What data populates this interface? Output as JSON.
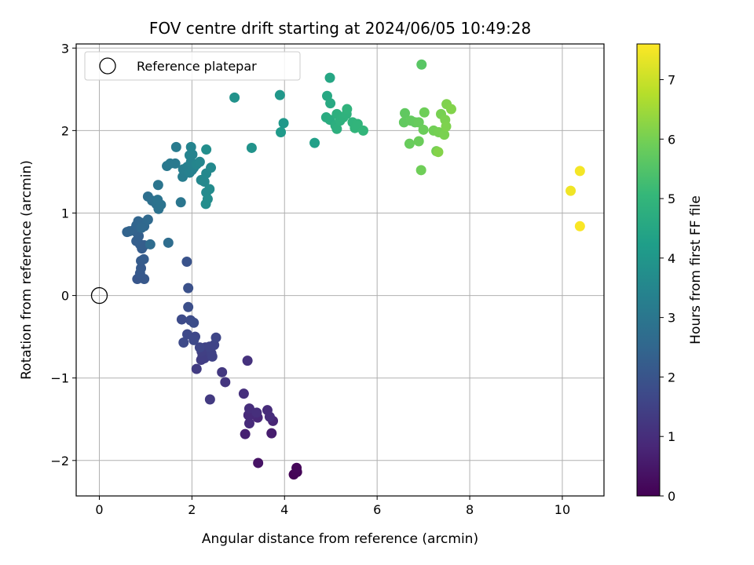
{
  "chart_data": {
    "type": "scatter",
    "title": "FOV centre drift starting at 2024/06/05 10:49:28",
    "xlabel": "Angular distance from reference (arcmin)",
    "ylabel": "Rotation from reference (arcmin)",
    "xlim": [
      -0.5,
      10.9
    ],
    "ylim": [
      -2.43,
      3.05
    ],
    "x_ticks": [
      0,
      2,
      4,
      6,
      8,
      10
    ],
    "x_tick_labels": [
      "0",
      "2",
      "4",
      "6",
      "8",
      "10"
    ],
    "y_ticks": [
      -2,
      -1,
      0,
      1,
      2,
      3
    ],
    "y_tick_labels": [
      "−2",
      "−1",
      "0",
      "1",
      "2",
      "3"
    ],
    "grid": true,
    "legend": {
      "placement": "upper-left",
      "entries": [
        {
          "label": "Reference platepar",
          "marker": "open-circle"
        }
      ]
    },
    "reference_point": {
      "x": 0,
      "y": 0
    },
    "colorbar": {
      "label": "Hours from first FF file",
      "range": [
        0,
        7.6
      ],
      "ticks": [
        0,
        1,
        2,
        3,
        4,
        5,
        6,
        7
      ],
      "tick_labels": [
        "0",
        "1",
        "2",
        "3",
        "4",
        "5",
        "6",
        "7"
      ],
      "colormap": "viridis",
      "colormap_stops": [
        "#440154",
        "#482878",
        "#3e4989",
        "#31688e",
        "#26828e",
        "#1f9e89",
        "#35b779",
        "#6ece58",
        "#b5de2b",
        "#fde725"
      ]
    },
    "series": [
      {
        "color_by": "hours",
        "points": [
          {
            "x": 4.2,
            "y": -2.17,
            "c": 0.05
          },
          {
            "x": 4.27,
            "y": -2.14,
            "c": 0.08
          },
          {
            "x": 4.26,
            "y": -2.09,
            "c": 0.12
          },
          {
            "x": 3.43,
            "y": -2.03,
            "c": 0.4
          },
          {
            "x": 3.72,
            "y": -1.67,
            "c": 0.6
          },
          {
            "x": 3.15,
            "y": -1.68,
            "c": 0.7
          },
          {
            "x": 3.75,
            "y": -1.52,
            "c": 0.8
          },
          {
            "x": 3.42,
            "y": -1.48,
            "c": 0.85
          },
          {
            "x": 3.3,
            "y": -1.44,
            "c": 0.88
          },
          {
            "x": 3.22,
            "y": -1.45,
            "c": 0.9
          },
          {
            "x": 3.24,
            "y": -1.55,
            "c": 0.92
          },
          {
            "x": 3.63,
            "y": -1.39,
            "c": 0.95
          },
          {
            "x": 3.68,
            "y": -1.47,
            "c": 0.97
          },
          {
            "x": 3.24,
            "y": -1.37,
            "c": 1.0
          },
          {
            "x": 3.4,
            "y": -1.42,
            "c": 1.02
          },
          {
            "x": 3.12,
            "y": -1.19,
            "c": 1.05
          },
          {
            "x": 3.2,
            "y": -0.79,
            "c": 1.1
          },
          {
            "x": 2.72,
            "y": -1.05,
            "c": 1.2
          },
          {
            "x": 2.65,
            "y": -0.93,
            "c": 1.25
          },
          {
            "x": 2.39,
            "y": -1.26,
            "c": 1.3
          },
          {
            "x": 2.1,
            "y": -0.89,
            "c": 1.35
          },
          {
            "x": 2.2,
            "y": -0.78,
            "c": 1.38
          },
          {
            "x": 2.23,
            "y": -0.73,
            "c": 1.4
          },
          {
            "x": 2.27,
            "y": -0.76,
            "c": 1.42
          },
          {
            "x": 2.21,
            "y": -0.68,
            "c": 1.45
          },
          {
            "x": 2.29,
            "y": -0.63,
            "c": 1.47
          },
          {
            "x": 2.42,
            "y": -0.7,
            "c": 1.5
          },
          {
            "x": 2.44,
            "y": -0.74,
            "c": 1.52
          },
          {
            "x": 2.38,
            "y": -0.62,
            "c": 1.55
          },
          {
            "x": 2.48,
            "y": -0.6,
            "c": 1.57
          },
          {
            "x": 2.52,
            "y": -0.51,
            "c": 1.6
          },
          {
            "x": 2.17,
            "y": -0.63,
            "c": 1.62
          },
          {
            "x": 2.07,
            "y": -0.5,
            "c": 1.65
          },
          {
            "x": 1.9,
            "y": -0.47,
            "c": 1.68
          },
          {
            "x": 2.04,
            "y": -0.54,
            "c": 1.7
          },
          {
            "x": 1.82,
            "y": -0.57,
            "c": 1.72
          },
          {
            "x": 1.78,
            "y": -0.29,
            "c": 1.75
          },
          {
            "x": 1.97,
            "y": -0.3,
            "c": 1.77
          },
          {
            "x": 2.04,
            "y": -0.33,
            "c": 1.8
          },
          {
            "x": 1.92,
            "y": -0.14,
            "c": 1.85
          },
          {
            "x": 1.92,
            "y": 0.09,
            "c": 1.9
          },
          {
            "x": 1.89,
            "y": 0.41,
            "c": 1.95
          },
          {
            "x": 0.82,
            "y": 0.2,
            "c": 2.05
          },
          {
            "x": 0.97,
            "y": 0.2,
            "c": 2.1
          },
          {
            "x": 0.88,
            "y": 0.27,
            "c": 2.13
          },
          {
            "x": 0.9,
            "y": 0.33,
            "c": 2.15
          },
          {
            "x": 0.9,
            "y": 0.42,
            "c": 2.18
          },
          {
            "x": 0.96,
            "y": 0.44,
            "c": 2.2
          },
          {
            "x": 0.92,
            "y": 0.57,
            "c": 2.22
          },
          {
            "x": 0.97,
            "y": 0.61,
            "c": 2.25
          },
          {
            "x": 0.88,
            "y": 0.62,
            "c": 2.27
          },
          {
            "x": 0.8,
            "y": 0.66,
            "c": 2.3
          },
          {
            "x": 0.85,
            "y": 0.72,
            "c": 2.32
          },
          {
            "x": 0.8,
            "y": 0.77,
            "c": 2.35
          },
          {
            "x": 0.74,
            "y": 0.79,
            "c": 2.37
          },
          {
            "x": 0.6,
            "y": 0.77,
            "c": 2.4
          },
          {
            "x": 0.65,
            "y": 0.78,
            "c": 2.42
          },
          {
            "x": 0.8,
            "y": 0.85,
            "c": 2.45
          },
          {
            "x": 0.84,
            "y": 0.9,
            "c": 2.47
          },
          {
            "x": 0.92,
            "y": 0.88,
            "c": 2.5
          },
          {
            "x": 0.97,
            "y": 0.84,
            "c": 2.52
          },
          {
            "x": 0.91,
            "y": 0.82,
            "c": 2.55
          },
          {
            "x": 1.05,
            "y": 0.92,
            "c": 2.6
          },
          {
            "x": 1.1,
            "y": 0.62,
            "c": 2.65
          },
          {
            "x": 1.49,
            "y": 0.64,
            "c": 2.7
          },
          {
            "x": 1.05,
            "y": 1.2,
            "c": 2.75
          },
          {
            "x": 1.14,
            "y": 1.15,
            "c": 2.8
          },
          {
            "x": 1.23,
            "y": 1.11,
            "c": 2.82
          },
          {
            "x": 1.28,
            "y": 1.05,
            "c": 2.85
          },
          {
            "x": 1.33,
            "y": 1.1,
            "c": 2.88
          },
          {
            "x": 1.26,
            "y": 1.16,
            "c": 2.9
          },
          {
            "x": 1.27,
            "y": 1.34,
            "c": 2.95
          },
          {
            "x": 1.76,
            "y": 1.13,
            "c": 3.0
          },
          {
            "x": 1.46,
            "y": 1.57,
            "c": 3.05
          },
          {
            "x": 1.53,
            "y": 1.6,
            "c": 3.08
          },
          {
            "x": 1.64,
            "y": 1.6,
            "c": 3.1
          },
          {
            "x": 1.66,
            "y": 1.8,
            "c": 3.15
          },
          {
            "x": 1.8,
            "y": 1.44,
            "c": 3.2
          },
          {
            "x": 1.86,
            "y": 1.49,
            "c": 3.22
          },
          {
            "x": 1.81,
            "y": 1.53,
            "c": 3.25
          },
          {
            "x": 1.9,
            "y": 1.56,
            "c": 3.27
          },
          {
            "x": 1.95,
            "y": 1.49,
            "c": 3.3
          },
          {
            "x": 2.0,
            "y": 1.52,
            "c": 3.32
          },
          {
            "x": 2.04,
            "y": 1.55,
            "c": 3.35
          },
          {
            "x": 1.98,
            "y": 1.62,
            "c": 3.37
          },
          {
            "x": 1.95,
            "y": 1.7,
            "c": 3.4
          },
          {
            "x": 2.01,
            "y": 1.71,
            "c": 3.42
          },
          {
            "x": 1.98,
            "y": 1.8,
            "c": 3.45
          },
          {
            "x": 2.1,
            "y": 1.59,
            "c": 3.47
          },
          {
            "x": 2.17,
            "y": 1.62,
            "c": 3.5
          },
          {
            "x": 2.2,
            "y": 1.4,
            "c": 3.52
          },
          {
            "x": 2.27,
            "y": 1.38,
            "c": 3.55
          },
          {
            "x": 2.31,
            "y": 1.48,
            "c": 3.57
          },
          {
            "x": 2.41,
            "y": 1.55,
            "c": 3.6
          },
          {
            "x": 2.31,
            "y": 1.25,
            "c": 3.62
          },
          {
            "x": 2.38,
            "y": 1.29,
            "c": 3.65
          },
          {
            "x": 2.34,
            "y": 1.17,
            "c": 3.67
          },
          {
            "x": 2.3,
            "y": 1.11,
            "c": 3.7
          },
          {
            "x": 2.31,
            "y": 1.77,
            "c": 3.75
          },
          {
            "x": 2.92,
            "y": 2.4,
            "c": 3.85
          },
          {
            "x": 3.29,
            "y": 1.79,
            "c": 3.9
          },
          {
            "x": 3.9,
            "y": 2.43,
            "c": 4.0
          },
          {
            "x": 3.98,
            "y": 2.09,
            "c": 4.05
          },
          {
            "x": 3.92,
            "y": 1.98,
            "c": 4.1
          },
          {
            "x": 4.65,
            "y": 1.85,
            "c": 4.3
          },
          {
            "x": 4.98,
            "y": 2.64,
            "c": 4.5
          },
          {
            "x": 4.92,
            "y": 2.42,
            "c": 4.55
          },
          {
            "x": 4.99,
            "y": 2.33,
            "c": 4.6
          },
          {
            "x": 4.9,
            "y": 2.16,
            "c": 4.65
          },
          {
            "x": 4.98,
            "y": 2.13,
            "c": 4.7
          },
          {
            "x": 5.1,
            "y": 2.06,
            "c": 4.75
          },
          {
            "x": 5.13,
            "y": 2.02,
            "c": 4.78
          },
          {
            "x": 5.13,
            "y": 2.2,
            "c": 4.8
          },
          {
            "x": 5.2,
            "y": 2.12,
            "c": 4.82
          },
          {
            "x": 5.27,
            "y": 2.16,
            "c": 4.85
          },
          {
            "x": 5.34,
            "y": 2.2,
            "c": 4.88
          },
          {
            "x": 5.35,
            "y": 2.26,
            "c": 4.9
          },
          {
            "x": 5.47,
            "y": 2.1,
            "c": 4.92
          },
          {
            "x": 5.52,
            "y": 2.03,
            "c": 4.95
          },
          {
            "x": 5.58,
            "y": 2.08,
            "c": 4.97
          },
          {
            "x": 5.7,
            "y": 2.0,
            "c": 5.0
          },
          {
            "x": 6.96,
            "y": 2.8,
            "c": 5.6
          },
          {
            "x": 6.6,
            "y": 2.21,
            "c": 5.7
          },
          {
            "x": 6.58,
            "y": 2.1,
            "c": 5.72
          },
          {
            "x": 6.73,
            "y": 2.12,
            "c": 5.75
          },
          {
            "x": 6.82,
            "y": 2.1,
            "c": 5.77
          },
          {
            "x": 6.9,
            "y": 2.1,
            "c": 5.8
          },
          {
            "x": 6.7,
            "y": 1.84,
            "c": 5.82
          },
          {
            "x": 6.9,
            "y": 1.87,
            "c": 5.85
          },
          {
            "x": 7.0,
            "y": 2.01,
            "c": 5.87
          },
          {
            "x": 7.02,
            "y": 2.22,
            "c": 5.9
          },
          {
            "x": 6.95,
            "y": 1.52,
            "c": 5.92
          },
          {
            "x": 7.22,
            "y": 2.0,
            "c": 5.95
          },
          {
            "x": 7.28,
            "y": 1.75,
            "c": 5.97
          },
          {
            "x": 7.33,
            "y": 1.98,
            "c": 6.0
          },
          {
            "x": 7.38,
            "y": 2.2,
            "c": 6.02
          },
          {
            "x": 7.45,
            "y": 1.95,
            "c": 6.05
          },
          {
            "x": 7.47,
            "y": 2.13,
            "c": 6.07
          },
          {
            "x": 7.49,
            "y": 2.05,
            "c": 6.1
          },
          {
            "x": 7.5,
            "y": 2.32,
            "c": 6.12
          },
          {
            "x": 7.6,
            "y": 2.26,
            "c": 6.15
          },
          {
            "x": 7.32,
            "y": 1.74,
            "c": 6.17
          },
          {
            "x": 10.18,
            "y": 1.27,
            "c": 7.45
          },
          {
            "x": 10.38,
            "y": 1.51,
            "c": 7.5
          },
          {
            "x": 10.38,
            "y": 0.84,
            "c": 7.55
          }
        ]
      }
    ]
  }
}
